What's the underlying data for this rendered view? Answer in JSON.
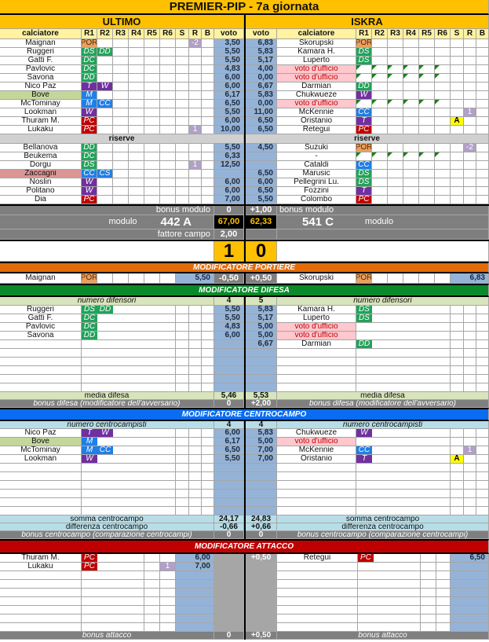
{
  "title": "PREMIER-PIP - 7a giornata",
  "headers": {
    "calciatore": "calciatore",
    "voto": "voto",
    "cols": [
      "R1",
      "R2",
      "R3",
      "R4",
      "R5",
      "R6",
      "S",
      "R",
      "B"
    ],
    "riserve": "riserve"
  },
  "role_colors": {
    "POR": "#e8a060",
    "DS": "#21a35a",
    "DC": "#21a35a",
    "DD": "#21a35a",
    "M": "#1f7fe6",
    "CC": "#1f7fe6",
    "CS": "#1f7fe6",
    "T": "#7030a0",
    "W": "#7030a0",
    "PC": "#c00000"
  },
  "section_colors": {
    "portiere": "#e36c09",
    "difesa": "#0a8a2a",
    "centrocampo": "#0a6cf0",
    "attacco": "#c00000"
  },
  "home": {
    "name": "ULTIMO",
    "starters": [
      {
        "name": "Maignan",
        "roles": [
          "POR"
        ],
        "r": "-2",
        "voto": "3,50"
      },
      {
        "name": "Ruggeri",
        "roles": [
          "DS",
          "DD"
        ],
        "voto": "5,50"
      },
      {
        "name": "Gatti F.",
        "roles": [
          "DC"
        ],
        "voto": "5,50"
      },
      {
        "name": "Pavlovic",
        "roles": [
          "DC"
        ],
        "voto": "4,83"
      },
      {
        "name": "Savona",
        "roles": [
          "DD"
        ],
        "voto": "6,00"
      },
      {
        "name": "Nico Paz",
        "roles": [
          "T",
          "W"
        ],
        "voto": "6,00"
      },
      {
        "name": "Bove",
        "roles": [
          "M"
        ],
        "voto": "6,17",
        "hl": "green"
      },
      {
        "name": "McTominay",
        "roles": [
          "M",
          "CC"
        ],
        "voto": "6,50"
      },
      {
        "name": "Lookman",
        "roles": [
          "W"
        ],
        "voto": "5,50"
      },
      {
        "name": "Thuram M.",
        "roles": [
          "PC"
        ],
        "voto": "6,00"
      },
      {
        "name": "Lukaku",
        "roles": [
          "PC"
        ],
        "r": "1",
        "voto": "10,00"
      }
    ],
    "bench": [
      {
        "name": "Bellanova",
        "roles": [
          "DD"
        ],
        "voto": "5,50"
      },
      {
        "name": "Beukema",
        "roles": [
          "DC"
        ],
        "voto": "6,33"
      },
      {
        "name": "Dorgu",
        "roles": [
          "DS"
        ],
        "r": "1",
        "voto": "12,50"
      },
      {
        "name": "Zaccagni",
        "roles": [
          "CC",
          "CS"
        ],
        "voto": "",
        "hl": "pink"
      },
      {
        "name": "Noslin",
        "roles": [
          "W"
        ],
        "voto": "6,00"
      },
      {
        "name": "Politano",
        "roles": [
          "W"
        ],
        "voto": "6,00"
      },
      {
        "name": "Dia",
        "roles": [
          "PC"
        ],
        "voto": "7,00"
      }
    ]
  },
  "away": {
    "name": "ISKRA",
    "starters": [
      {
        "name": "Skorupski",
        "roles": [
          "POR"
        ],
        "voto": "6,83"
      },
      {
        "name": "Kamara H.",
        "roles": [
          "DS"
        ],
        "voto": "5,83"
      },
      {
        "name": "Luperto",
        "roles": [
          "DS"
        ],
        "voto": "5,17"
      },
      {
        "name": "voto d'ufficio",
        "roles": [],
        "voto": "4,00",
        "hl": "ufficio",
        "tri": true
      },
      {
        "name": "voto d'ufficio",
        "roles": [],
        "voto": "0,00",
        "hl": "ufficio",
        "tri": true
      },
      {
        "name": "Darmian",
        "roles": [
          "DD"
        ],
        "voto": "6,67"
      },
      {
        "name": "Chukwueze",
        "roles": [
          "W"
        ],
        "voto": "5,83"
      },
      {
        "name": "voto d'ufficio",
        "roles": [],
        "voto": "0,00",
        "hl": "ufficio",
        "tri": true
      },
      {
        "name": "McKennie",
        "roles": [
          "CC"
        ],
        "r": "1",
        "voto": "11,00"
      },
      {
        "name": "Oristanio",
        "roles": [
          "T"
        ],
        "s": "A",
        "voto": "6,50"
      },
      {
        "name": "Retegui",
        "roles": [
          "PC"
        ],
        "voto": "6,50"
      }
    ],
    "bench": [
      {
        "name": "Suzuki",
        "roles": [
          "POR"
        ],
        "r": "-2",
        "voto": "4,50"
      },
      {
        "name": "-",
        "roles": [],
        "voto": "",
        "tri": true
      },
      {
        "name": "Cataldi",
        "roles": [
          "CC"
        ],
        "voto": ""
      },
      {
        "name": "Marusic",
        "roles": [
          "DS"
        ],
        "voto": "6,50"
      },
      {
        "name": "Pellegrini Lu.",
        "roles": [
          "DS"
        ],
        "voto": "6,00"
      },
      {
        "name": "Fozzini",
        "roles": [
          "T"
        ],
        "voto": "6,50"
      },
      {
        "name": "Colombo",
        "roles": [
          "PC"
        ],
        "voto": "5,50"
      }
    ]
  },
  "summary": {
    "bonus_modulo_label": "bonus modulo",
    "home_bonus_modulo": "0",
    "away_bonus_modulo": "+1,00",
    "modulo_label": "modulo",
    "home_modulo": "442 A",
    "away_modulo": "541 C",
    "home_total": "67,00",
    "away_total": "62,33",
    "fattore_campo_label": "fattore campo",
    "home_fattore_campo": "2,00",
    "home_goals": "1",
    "away_goals": "0"
  },
  "portiere": {
    "title": "MODIFICATORE PORTIERE",
    "home": {
      "name": "Maignan",
      "roles": [
        "POR"
      ],
      "voto": "5,50",
      "mod": "-0,50"
    },
    "away": {
      "name": "Skorupski",
      "roles": [
        "POR"
      ],
      "voto": "6,83",
      "mod": "+0,50"
    }
  },
  "difesa": {
    "title": "MODIFICATORE DIFESA",
    "count_label": "numero difensori",
    "home_count": "4",
    "away_count": "5",
    "home_rows": [
      {
        "name": "Ruggeri",
        "roles": [
          "DS",
          "DD"
        ],
        "voto": "5,50"
      },
      {
        "name": "Gatti F.",
        "roles": [
          "DC"
        ],
        "voto": "5,50"
      },
      {
        "name": "Pavlovic",
        "roles": [
          "DC"
        ],
        "voto": "4,83"
      },
      {
        "name": "Savona",
        "roles": [
          "DD"
        ],
        "voto": "6,00"
      }
    ],
    "away_rows": [
      {
        "name": "Kamara H.",
        "roles": [
          "DS"
        ],
        "voto": "5,83"
      },
      {
        "name": "Luperto",
        "roles": [
          "DS"
        ],
        "voto": "5,17"
      },
      {
        "name": "voto d'ufficio",
        "roles": [],
        "voto": "5,00",
        "hl": "ufficio"
      },
      {
        "name": "voto d'ufficio",
        "roles": [],
        "voto": "5,00",
        "hl": "ufficio"
      },
      {
        "name": "Darmian",
        "roles": [
          "DD"
        ],
        "voto": "6,67"
      }
    ],
    "avg_label": "media difesa",
    "home_avg": "5,46",
    "away_avg": "5,53",
    "bonus_label": "bonus difesa (modificatore dell'avversario)",
    "home_bonus": "0",
    "away_bonus": "+2,00"
  },
  "centrocampo": {
    "title": "MODIFICATORE CENTROCAMPO",
    "count_label": "numero centrocampisti",
    "home_count": "4",
    "away_count": "4",
    "home_rows": [
      {
        "name": "Nico Paz",
        "roles": [
          "T",
          "W"
        ],
        "voto": "6,00"
      },
      {
        "name": "Bove",
        "roles": [
          "M"
        ],
        "voto": "6,17",
        "hl": "green"
      },
      {
        "name": "McTominay",
        "roles": [
          "M",
          "CC"
        ],
        "voto": "6,50"
      },
      {
        "name": "Lookman",
        "roles": [
          "W"
        ],
        "voto": "5,50"
      }
    ],
    "away_rows": [
      {
        "name": "Chukwueze",
        "roles": [
          "W"
        ],
        "voto": "5,83"
      },
      {
        "name": "voto d'ufficio",
        "roles": [],
        "voto": "5,00",
        "hl": "ufficio"
      },
      {
        "name": "McKennie",
        "roles": [
          "CC"
        ],
        "r": "1",
        "voto": "7,00"
      },
      {
        "name": "Oristanio",
        "roles": [
          "T"
        ],
        "s": "A",
        "voto": "7,00"
      }
    ],
    "sum_label": "somma centrocampo",
    "home_sum": "24,17",
    "away_sum": "24,83",
    "diff_label": "differenza centrocampo",
    "home_diff": "-0,66",
    "away_diff": "+0,66",
    "bonus_label": "bonus centrocampo (comparazione centrocampi)",
    "home_bonus": "0",
    "away_bonus": "0"
  },
  "attacco": {
    "title": "MODIFICATORE ATTACCO",
    "home_rows": [
      {
        "name": "Thuram M.",
        "roles": [
          "PC"
        ],
        "voto": "6,00"
      },
      {
        "name": "Lukaku",
        "roles": [
          "PC"
        ],
        "r": "1",
        "voto": "7,00"
      }
    ],
    "away_rows": [
      {
        "name": "Retegui",
        "roles": [
          "PC"
        ],
        "voto": "6,50"
      }
    ],
    "away_mod": "+0,50",
    "bonus_label": "bonus attacco",
    "home_bonus": "0",
    "away_bonus": "+0,50"
  }
}
